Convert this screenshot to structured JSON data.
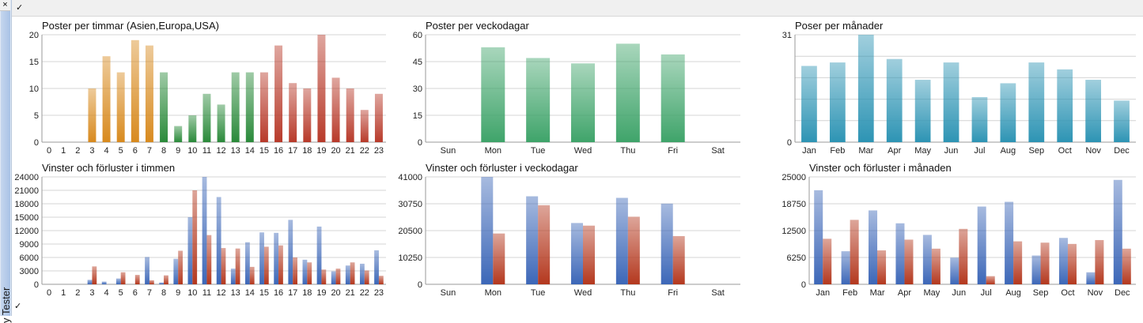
{
  "window": {
    "close_glyph": "×",
    "check_glyph": "✓",
    "side_tab_label": "y Tester"
  },
  "colors": {
    "orange": "#d88a1e",
    "green": "#2a8a3a",
    "red": "#b83a2a",
    "weekday_green": "#3fa46a",
    "teal": "#2d94b4",
    "blue": "#3c67b8",
    "loss_red": "#b4381e",
    "grid": "#d4d4d4"
  },
  "chart_data": [
    {
      "id": "hours",
      "type": "bar",
      "title": "Poster per timmar (Asien,Europa,USA)",
      "categories": [
        "0",
        "1",
        "2",
        "3",
        "4",
        "5",
        "6",
        "7",
        "8",
        "9",
        "10",
        "11",
        "12",
        "13",
        "14",
        "15",
        "16",
        "17",
        "18",
        "19",
        "20",
        "21",
        "22",
        "23"
      ],
      "values": [
        0,
        0,
        0,
        10,
        16,
        13,
        19,
        18,
        13,
        3,
        5,
        9,
        7,
        13,
        13,
        13,
        18,
        11,
        10,
        20,
        12,
        10,
        6,
        9
      ],
      "ylim": [
        0,
        20
      ],
      "yticks": [
        0,
        5,
        10,
        15,
        20
      ],
      "legend": "none",
      "grid": true
    },
    {
      "id": "weekdays",
      "type": "bar",
      "title": "Poster per veckodagar",
      "categories": [
        "Sun",
        "Mon",
        "Tue",
        "Wed",
        "Thu",
        "Fri",
        "Sat"
      ],
      "values": [
        0,
        53,
        47,
        44,
        55,
        49,
        0
      ],
      "ylim": [
        0,
        60
      ],
      "yticks": [
        0,
        15,
        30,
        45,
        60
      ],
      "legend": "none",
      "grid": true
    },
    {
      "id": "months",
      "type": "bar",
      "title": "Poser per månader",
      "categories": [
        "Jan",
        "Feb",
        "Mar",
        "Apr",
        "May",
        "Jun",
        "Jul",
        "Aug",
        "Sep",
        "Oct",
        "Nov",
        "Dec"
      ],
      "values": [
        22,
        23,
        31,
        24,
        18,
        23,
        13,
        17,
        23,
        21,
        18,
        12
      ],
      "ylim": [
        0,
        31
      ],
      "yticks": [
        0,
        31
      ],
      "legend": "none",
      "grid": true
    },
    {
      "id": "hours_wl",
      "type": "bar",
      "title": "Vinster och förluster i timmen",
      "categories": [
        "0",
        "1",
        "2",
        "3",
        "4",
        "5",
        "6",
        "7",
        "8",
        "9",
        "10",
        "11",
        "12",
        "13",
        "14",
        "15",
        "16",
        "17",
        "18",
        "19",
        "20",
        "21",
        "22",
        "23"
      ],
      "series": [
        {
          "values": [
            0,
            0,
            0,
            1000,
            600,
            1300,
            0,
            6100,
            400,
            5700,
            15000,
            24000,
            19500,
            3500,
            9400,
            11600,
            11500,
            14400,
            5500,
            12900,
            2900,
            4200,
            4600,
            7600
          ]
        },
        {
          "values": [
            0,
            0,
            0,
            4000,
            0,
            2700,
            2100,
            900,
            2000,
            7500,
            21000,
            11000,
            8100,
            8000,
            3900,
            8400,
            8700,
            6000,
            4900,
            3300,
            3500,
            4900,
            3100,
            1900
          ]
        }
      ],
      "ylim": [
        0,
        24000
      ],
      "yticks": [
        0,
        3000,
        6000,
        9000,
        12000,
        15000,
        18000,
        21000,
        24000
      ],
      "legend": "none",
      "grid": true
    },
    {
      "id": "weekdays_wl",
      "type": "bar",
      "title": "Vinster och förluster i veckodagar",
      "categories": [
        "Sun",
        "Mon",
        "Tue",
        "Wed",
        "Thu",
        "Fri",
        "Sat"
      ],
      "series": [
        {
          "values": [
            0,
            41000,
            33600,
            23400,
            33000,
            30800,
            0
          ]
        },
        {
          "values": [
            0,
            19400,
            30200,
            22400,
            25800,
            18400,
            0
          ]
        }
      ],
      "ylim": [
        0,
        41000
      ],
      "yticks": [
        0,
        10250,
        20500,
        30750,
        41000
      ],
      "legend": "none",
      "grid": true
    },
    {
      "id": "months_wl",
      "type": "bar",
      "title": "Vinster och förluster i månaden",
      "categories": [
        "Jan",
        "Feb",
        "Mar",
        "Apr",
        "May",
        "Jun",
        "Jul",
        "Aug",
        "Sep",
        "Oct",
        "Nov",
        "Dec"
      ],
      "series": [
        {
          "values": [
            21900,
            7700,
            17200,
            14200,
            11500,
            6200,
            18100,
            19200,
            6700,
            10800,
            2800,
            24300
          ]
        },
        {
          "values": [
            10600,
            15000,
            7900,
            10400,
            8300,
            12900,
            1900,
            10000,
            9700,
            9400,
            10300,
            8300
          ]
        }
      ],
      "ylim": [
        0,
        25000
      ],
      "yticks": [
        0,
        6250,
        12500,
        18750,
        25000
      ],
      "legend": "none",
      "grid": true
    }
  ]
}
